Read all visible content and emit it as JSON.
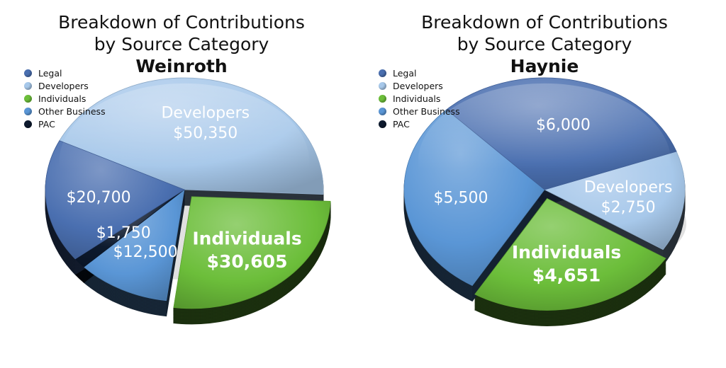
{
  "chart_data": [
    {
      "type": "pie",
      "title_lines": [
        "Breakdown of Contributions",
        "by Source Category",
        "Weinroth"
      ],
      "legend": [
        "Legal",
        "Developers",
        "Individuals",
        "Other Business",
        "PAC"
      ],
      "colors": {
        "Legal": "#4a6fb0",
        "Developers": "#a7c8ea",
        "Individuals": "#6cbe3a",
        "Other Business": "#5a96d6",
        "PAC": "#0d1a2e"
      },
      "slices": [
        {
          "category": "Developers",
          "value": 50350,
          "lines": [
            "Developers",
            "$50,350"
          ]
        },
        {
          "category": "Individuals",
          "value": 30605,
          "lines": [
            "Individuals",
            "$30,605"
          ]
        },
        {
          "category": "Other Business",
          "value": 12500,
          "lines": [
            "$12,500"
          ]
        },
        {
          "category": "PAC",
          "value": 1750,
          "lines": [
            "$1,750"
          ]
        },
        {
          "category": "Legal",
          "value": 20700,
          "lines": [
            "$20,700"
          ]
        }
      ]
    },
    {
      "type": "pie",
      "title_lines": [
        "Breakdown of Contributions",
        "by Source Category",
        "Haynie"
      ],
      "legend": [
        "Legal",
        "Developers",
        "Individuals",
        "Other Business",
        "PAC"
      ],
      "colors": {
        "Legal": "#4a6fb0",
        "Developers": "#a7c8ea",
        "Individuals": "#6cbe3a",
        "Other Business": "#5a96d6",
        "PAC": "#0d1a2e"
      },
      "slices": [
        {
          "category": "Developers",
          "value": 2750,
          "lines": [
            "Developers",
            "$2,750"
          ]
        },
        {
          "category": "Individuals",
          "value": 4651,
          "lines": [
            "Individuals",
            "$4,651"
          ]
        },
        {
          "category": "Other Business",
          "value": 5500,
          "lines": [
            "$5,500"
          ]
        },
        {
          "category": "Legal",
          "value": 6000,
          "lines": [
            "$6,000"
          ]
        }
      ]
    }
  ]
}
